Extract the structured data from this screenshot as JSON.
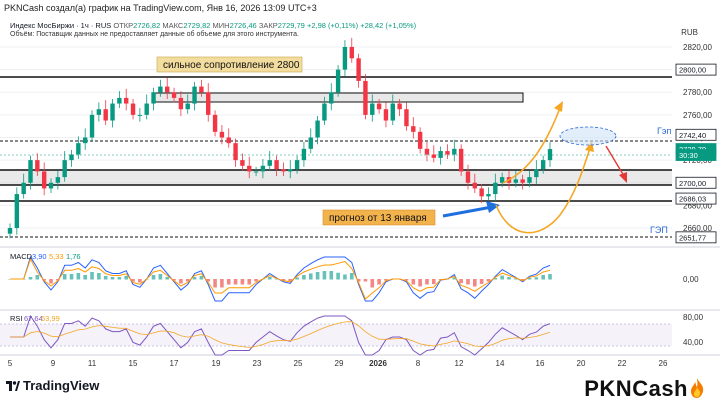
{
  "header": {
    "line1": "PKNCash создал(а) график на TradingView.com, Янв 16, 2026 13:09 UTC+3",
    "symbol": "Индекс МосБиржи · 1ч · RUS",
    "open_label": "ОТКР",
    "open_value": "2726,82",
    "high_label": "МАКС",
    "high_value": "2729,82",
    "low_label": "МИН",
    "low_value": "2726,46",
    "close_label": "ЗАКР",
    "close_value": "2729,79",
    "change": "+2,98 (+0,11%)",
    "change2": "+28,42 (+1,05%)",
    "volume_note": "Объём: Поставщик данных не предоставляет данные об объеме для этого инструмента.",
    "currency": "RUB"
  },
  "annotations": {
    "resistance": "сильное сопротивление 2800",
    "forecast": "прогноз от 13 января",
    "gap_upper": "Гэп",
    "gap_lower": "ГЭП"
  },
  "price_axis": {
    "ticks": [
      "2820,00",
      "2800,00",
      "2780,00",
      "2760,00",
      "2740,00",
      "2720,00",
      "2700,00",
      "2680,00",
      "2660,00"
    ],
    "labels": [
      {
        "text": "2800,00",
        "color": "#131722"
      },
      {
        "text": "2742,40",
        "color": "#131722"
      },
      {
        "text": "2729,79",
        "color": "#089981"
      },
      {
        "text": "30:30",
        "color": "#089981"
      },
      {
        "text": "2700,00",
        "color": "#131722"
      },
      {
        "text": "2686,03",
        "color": "#131722"
      },
      {
        "text": "2651,77",
        "color": "#131722"
      }
    ]
  },
  "macd": {
    "label": "MACD",
    "v1": "3,90",
    "v2": "5,33",
    "v3": "1,76",
    "ticks": [
      "0,00"
    ]
  },
  "rsi": {
    "label": "RSI",
    "v1": "67,64",
    "v2": "53,99",
    "ticks": [
      "80,00",
      "40,00"
    ]
  },
  "x_axis": {
    "labels": [
      "5",
      "9",
      "11",
      "15",
      "17",
      "19",
      "23",
      "25",
      "29",
      "2026",
      "8",
      "12",
      "14",
      "16",
      "20",
      "22",
      "26"
    ]
  },
  "footer": {
    "tv": "TradingView",
    "brand": "PKNCash"
  },
  "colors": {
    "up": "#089981",
    "down": "#f23645",
    "macd": "#2962ff",
    "signal": "#ff9800",
    "rsi": "#7e57c2",
    "arrow_orange": "#f5a623",
    "arrow_blue": "#1e6fe0",
    "gap_blue": "#2e6ad8"
  },
  "chart_data": {
    "type": "candlestick",
    "price_levels": [
      2800,
      2742.4,
      2700,
      2686.03,
      2651.77
    ],
    "ylim": [
      2645,
      2835
    ],
    "close_series": [
      2660,
      2690,
      2700,
      2720,
      2710,
      2695,
      2700,
      2705,
      2720,
      2725,
      2735,
      2740,
      2760,
      2765,
      2755,
      2770,
      2775,
      2770,
      2760,
      2760,
      2770,
      2780,
      2785,
      2780,
      2775,
      2765,
      2770,
      2785,
      2780,
      2760,
      2745,
      2740,
      2735,
      2720,
      2715,
      2710,
      2710,
      2715,
      2720,
      2712,
      2710,
      2712,
      2720,
      2730,
      2740,
      2755,
      2770,
      2780,
      2800,
      2820,
      2810,
      2790,
      2760,
      2770,
      2765,
      2755,
      2770,
      2765,
      2750,
      2745,
      2730,
      2725,
      2722,
      2728,
      2725,
      2730,
      2710,
      2700,
      2695,
      2688,
      2690,
      2700,
      2705,
      2700,
      2703,
      2700,
      2705,
      2712,
      2720,
      2729.79
    ]
  }
}
